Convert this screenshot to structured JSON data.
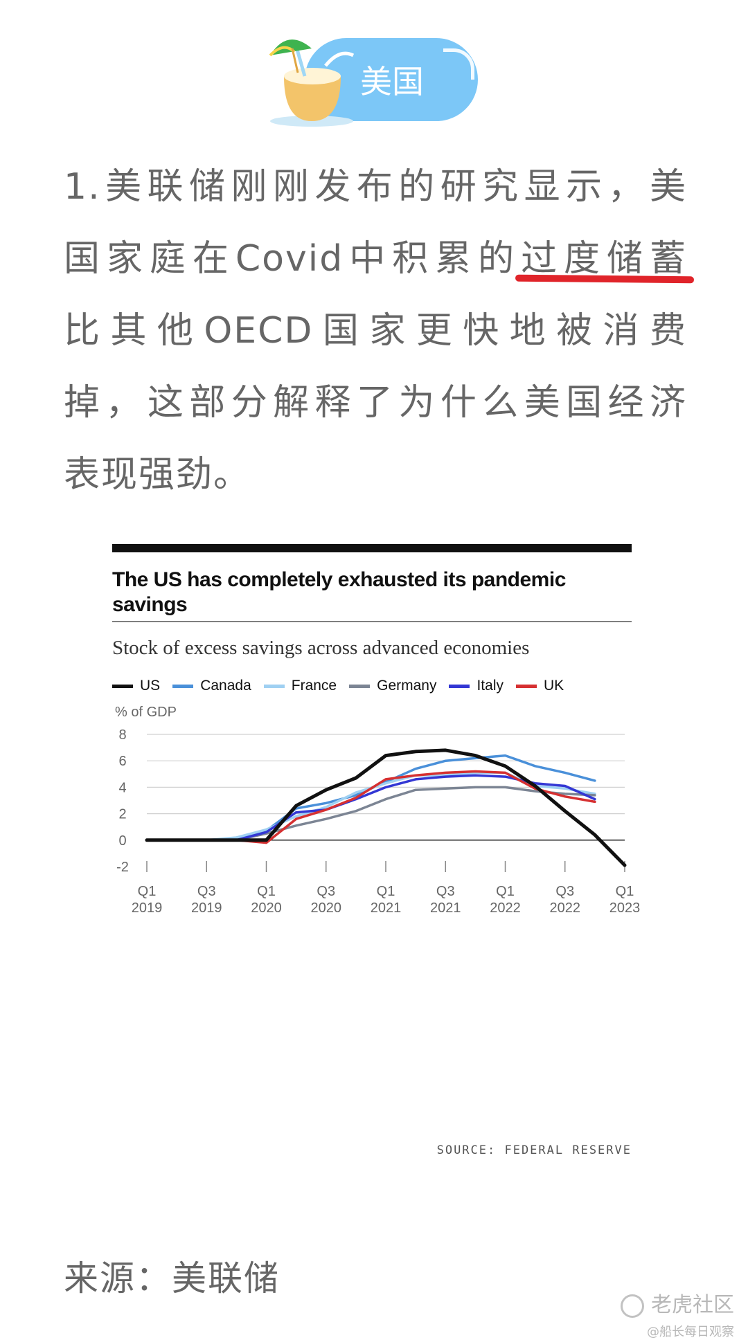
{
  "header": {
    "tag_label": "美国"
  },
  "article": {
    "lines": [
      "1.美联储刚刚发布的研究显示，美",
      "国家庭在Covid中积累的",
      "比其他OECD国家更快地被消费",
      "掉，这部分解释了为什么美国经济",
      "表现强劲。"
    ],
    "underlined": "过度储蓄"
  },
  "chart_data": {
    "type": "line",
    "title": "The US has completely exhausted its pandemic savings",
    "subtitle": "Stock of excess savings across advanced economies",
    "ylabel": "% of GDP",
    "ylim": [
      -2,
      8
    ],
    "yticks": [
      "8",
      "6",
      "4",
      "2",
      "0",
      "-2"
    ],
    "x": [
      "2019Q1",
      "2019Q2",
      "2019Q3",
      "2019Q4",
      "2020Q1",
      "2020Q2",
      "2020Q3",
      "2020Q4",
      "2021Q1",
      "2021Q2",
      "2021Q3",
      "2021Q4",
      "2022Q1",
      "2022Q2",
      "2022Q3",
      "2022Q4",
      "2023Q1"
    ],
    "xtick_labels": [
      {
        "top": "Q1",
        "bottom": "2019"
      },
      {
        "top": "Q3",
        "bottom": "2019"
      },
      {
        "top": "Q1",
        "bottom": "2020"
      },
      {
        "top": "Q3",
        "bottom": "2020"
      },
      {
        "top": "Q1",
        "bottom": "2021"
      },
      {
        "top": "Q3",
        "bottom": "2021"
      },
      {
        "top": "Q1",
        "bottom": "2022"
      },
      {
        "top": "Q3",
        "bottom": "2022"
      },
      {
        "top": "Q1",
        "bottom": "2023"
      }
    ],
    "legend_position": "top",
    "grid": true,
    "series": [
      {
        "name": "US",
        "color": "#111111",
        "values": [
          0,
          0,
          0,
          0,
          0,
          2.6,
          3.8,
          4.7,
          6.4,
          6.7,
          6.8,
          6.4,
          5.6,
          4.1,
          2.2,
          0.4,
          -1.9
        ]
      },
      {
        "name": "Canada",
        "color": "#4a90d9",
        "values": [
          0,
          0,
          0,
          0.1,
          0.7,
          2.4,
          2.8,
          3.4,
          4.4,
          5.4,
          6.0,
          6.2,
          6.4,
          5.6,
          5.1,
          4.5,
          null
        ]
      },
      {
        "name": "France",
        "color": "#9fd0f2",
        "values": [
          0,
          0,
          0,
          0.2,
          0.8,
          1.8,
          2.5,
          3.6,
          4.3,
          4.9,
          4.9,
          5.1,
          5.1,
          4.1,
          3.9,
          3.5,
          null
        ]
      },
      {
        "name": "Germany",
        "color": "#7c8594",
        "values": [
          0,
          0,
          0,
          0,
          0.5,
          1.1,
          1.6,
          2.2,
          3.1,
          3.8,
          3.9,
          4.0,
          4.0,
          3.7,
          3.5,
          3.4,
          null
        ]
      },
      {
        "name": "Italy",
        "color": "#3337d4",
        "values": [
          0,
          0,
          0,
          0,
          0.6,
          2.1,
          2.3,
          3.1,
          4.0,
          4.6,
          4.8,
          4.9,
          4.8,
          4.3,
          4.1,
          3.1,
          null
        ]
      },
      {
        "name": "UK",
        "color": "#d63031",
        "values": [
          0,
          0,
          0,
          0,
          -0.2,
          1.6,
          2.3,
          3.2,
          4.6,
          4.9,
          5.1,
          5.2,
          5.1,
          3.9,
          3.3,
          2.9,
          null
        ]
      }
    ],
    "source": "SOURCE: FEDERAL RESERVE"
  },
  "footer": {
    "source_text": "来源：美联储"
  },
  "watermark": {
    "logo_text": "老虎社区",
    "handle": "@船长每日观察"
  }
}
